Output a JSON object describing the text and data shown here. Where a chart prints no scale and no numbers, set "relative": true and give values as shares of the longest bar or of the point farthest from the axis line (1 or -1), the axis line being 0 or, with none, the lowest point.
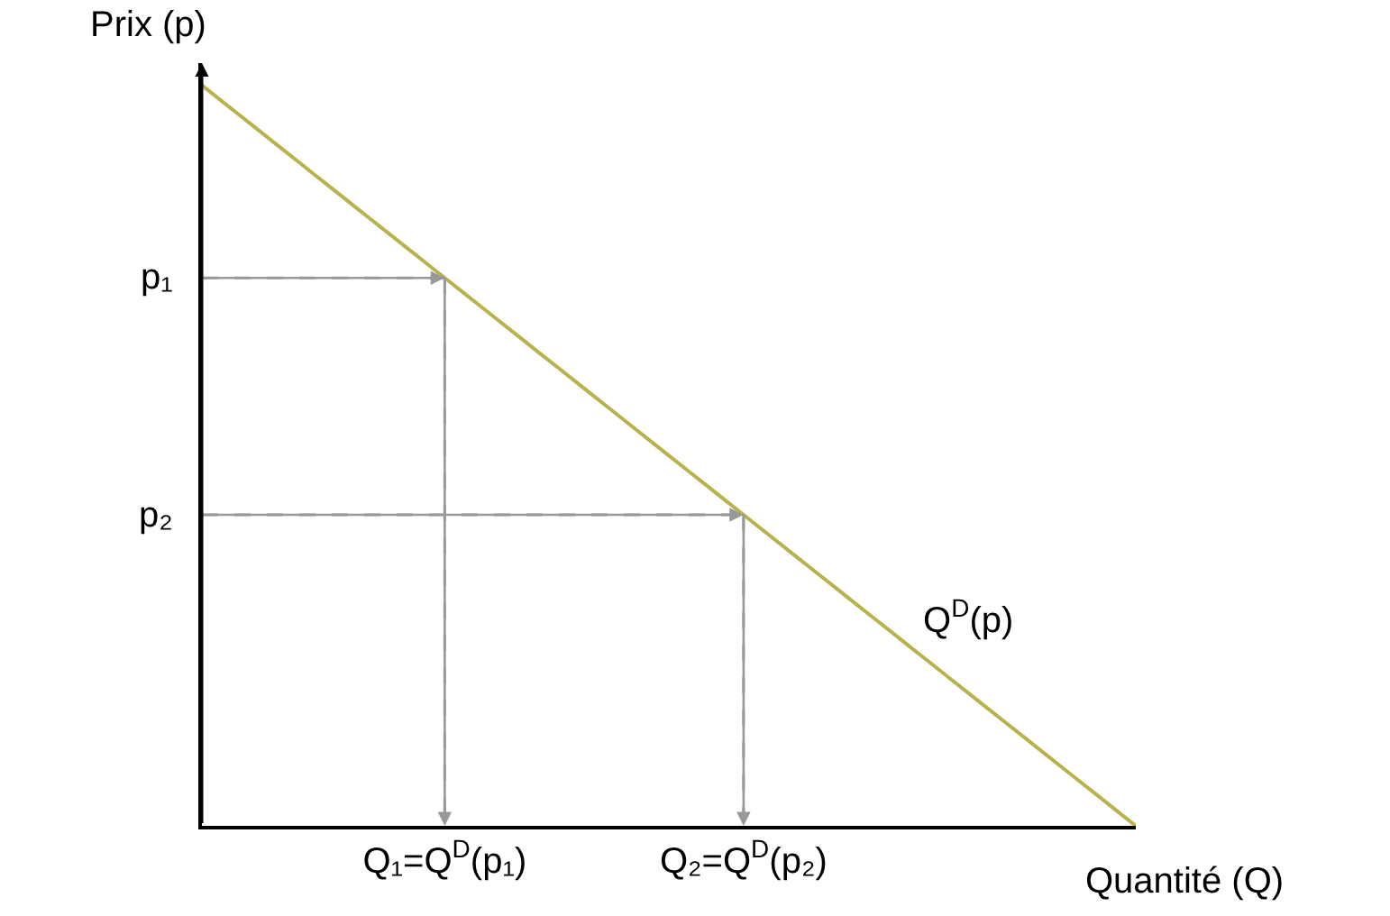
{
  "chart_data": {
    "type": "line",
    "relative": true,
    "xlabel": "Quantité (Q)",
    "ylabel": "Prix (p)",
    "categories": [
      null,
      null,
      null,
      null,
      null,
      null,
      null,
      null,
      null,
      null,
      null,
      null,
      null,
      "Q₁=Q$^{D}$(p₁)",
      null,
      null,
      null,
      null,
      null,
      null,
      null,
      null,
      null,
      null,
      null,
      null,
      null,
      null,
      null,
      "Q₂=Q$^{D}$(p₂)",
      null,
      null,
      null,
      null,
      null,
      null,
      null,
      null,
      null,
      null,
      null,
      null,
      null,
      null,
      null,
      null,
      null,
      null,
      null,
      null,
      null
    ],
    "legend": false,
    "marker": "none",
    "line_style": "solid",
    "ref_lines": [
      {
        "axis": "y",
        "value": 0.74,
        "label": "p₁",
        "color": "#999999",
        "line_style": "dashed"
      },
      {
        "axis": "y",
        "value": 0.42,
        "label": "p₂",
        "color": "#999999",
        "line_style": "dashed"
      }
    ],
    "series": [
      {
        "name": "Q$^{D}$(p)",
        "color": "#b8b24e",
        "values": [
          1,
          0.98,
          0.96,
          0.94,
          0.92,
          0.9,
          0.88,
          0.86,
          0.84,
          0.82,
          0.8,
          0.78,
          0.76,
          0.74,
          0.72,
          0.7,
          0.68,
          0.66,
          0.64,
          0.62,
          0.6,
          0.58,
          0.56,
          0.54,
          0.52,
          0.5,
          0.48,
          0.46,
          0.44,
          0.42,
          0.4,
          0.38,
          0.36,
          0.34,
          0.32,
          0.3,
          0.28,
          0.26,
          0.24,
          0.22,
          0.2,
          0.18,
          0.16,
          0.14,
          0.12,
          0.1,
          0.08,
          0.06,
          0.04,
          0.02,
          0
        ]
      }
    ]
  }
}
